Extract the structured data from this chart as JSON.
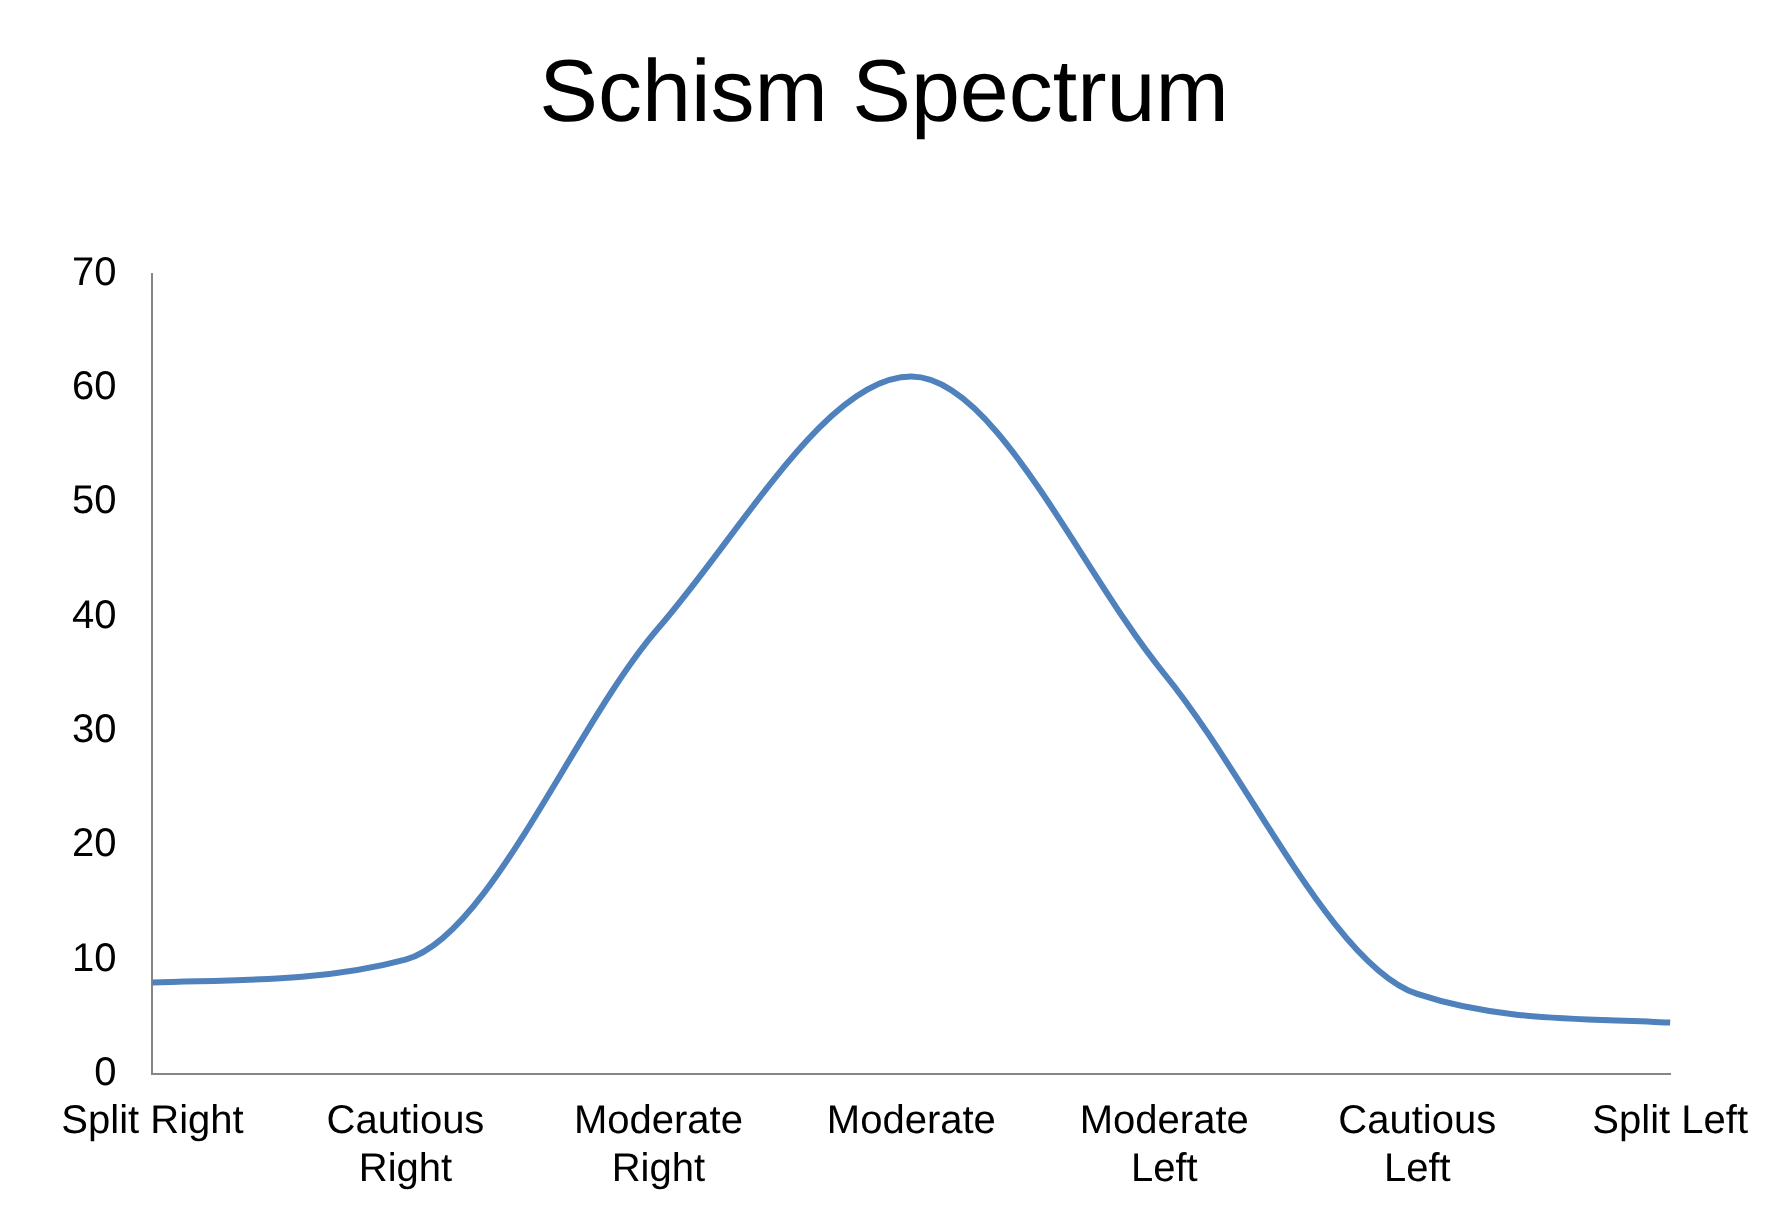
{
  "chart_data": {
    "type": "line",
    "title": "Schism Spectrum",
    "categories": [
      "Split Right",
      "Cautious Right",
      "Moderate Right",
      "Moderate",
      "Moderate Left",
      "Cautious Left",
      "Split Left"
    ],
    "series": [
      {
        "color": "#4f81bd",
        "values": [
          8,
          10,
          39,
          61,
          35,
          7,
          4.5
        ]
      }
    ],
    "ylim": [
      0,
      70
    ],
    "yticks": [
      0,
      10,
      20,
      30,
      40,
      50,
      60,
      70
    ],
    "grid": false,
    "legend": false,
    "marker": "none",
    "line_style": "solid"
  }
}
